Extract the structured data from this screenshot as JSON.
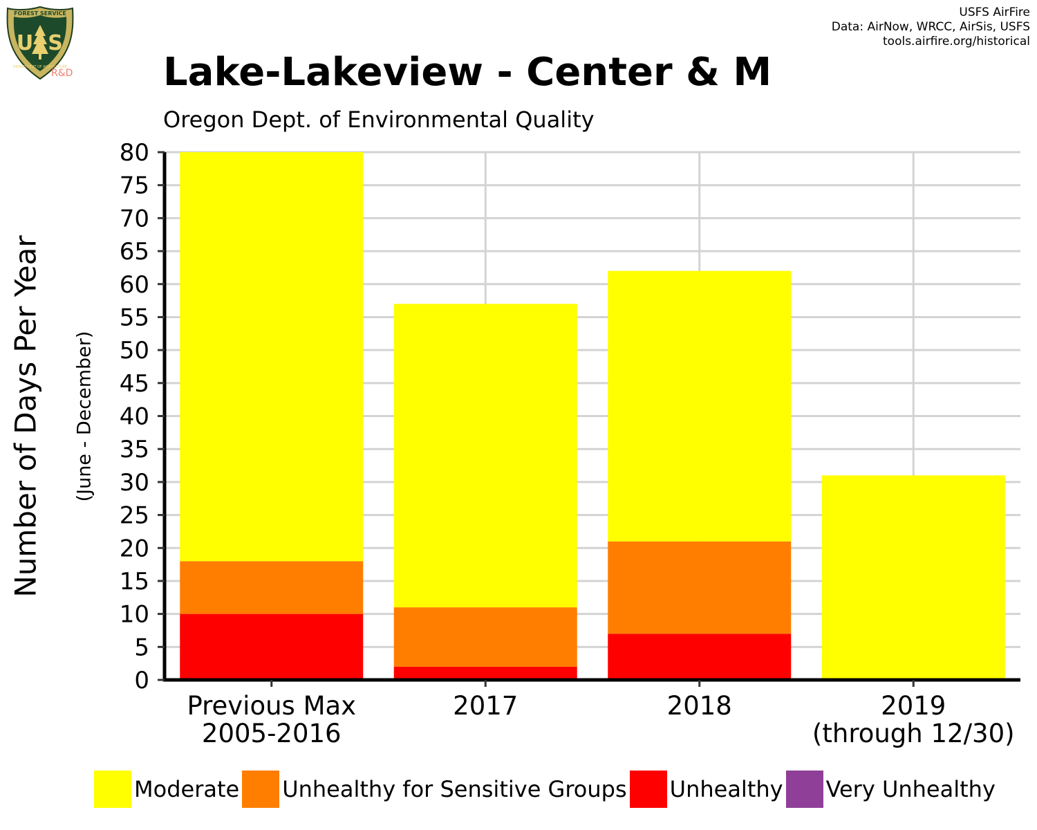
{
  "header": {
    "title": "Lake-Lakeview - Center & M",
    "subtitle": "Oregon Dept. of Environmental Quality",
    "credits": [
      "USFS AirFire",
      "Data: AirNow, WRCC, AirSis, USFS",
      "tools.airfire.org/historical"
    ],
    "logo_text": {
      "top": "FOREST SERVICE",
      "left_letter": "U",
      "right_letter": "S",
      "bottom": "DEPARTMENT OF AGRICULTURE",
      "rd": "R&D"
    }
  },
  "chart_data": {
    "type": "bar",
    "stacked": true,
    "title": "Lake-Lakeview - Center & M",
    "subtitle": "Oregon Dept. of Environmental Quality",
    "ylabel": "Number of Days Per Year",
    "ysublabel": "(June - December)",
    "ylim": [
      0,
      80
    ],
    "ytick_step": 5,
    "grid": true,
    "legend_position": "bottom",
    "categories": [
      [
        "Previous Max",
        "2005-2016"
      ],
      [
        "2017"
      ],
      [
        "2018"
      ],
      [
        "2019",
        "(through 12/30)"
      ]
    ],
    "series": [
      {
        "name": "Unhealthy",
        "color": "#ff0000",
        "values": [
          10,
          2,
          7,
          0
        ]
      },
      {
        "name": "Unhealthy for Sensitive Groups",
        "color": "#ff7e00",
        "values": [
          8,
          9,
          14,
          0
        ]
      },
      {
        "name": "Moderate",
        "color": "#ffff00",
        "values": [
          62,
          46,
          41,
          31
        ]
      },
      {
        "name": "Very Unhealthy",
        "color": "#8f3f97",
        "values": [
          0,
          0,
          0,
          0
        ]
      }
    ],
    "legend": [
      {
        "name": "Moderate",
        "color": "#ffff00"
      },
      {
        "name": "Unhealthy for Sensitive Groups",
        "color": "#ff7e00"
      },
      {
        "name": "Unhealthy",
        "color": "#ff0000"
      },
      {
        "name": "Very Unhealthy",
        "color": "#8f3f97"
      }
    ]
  }
}
